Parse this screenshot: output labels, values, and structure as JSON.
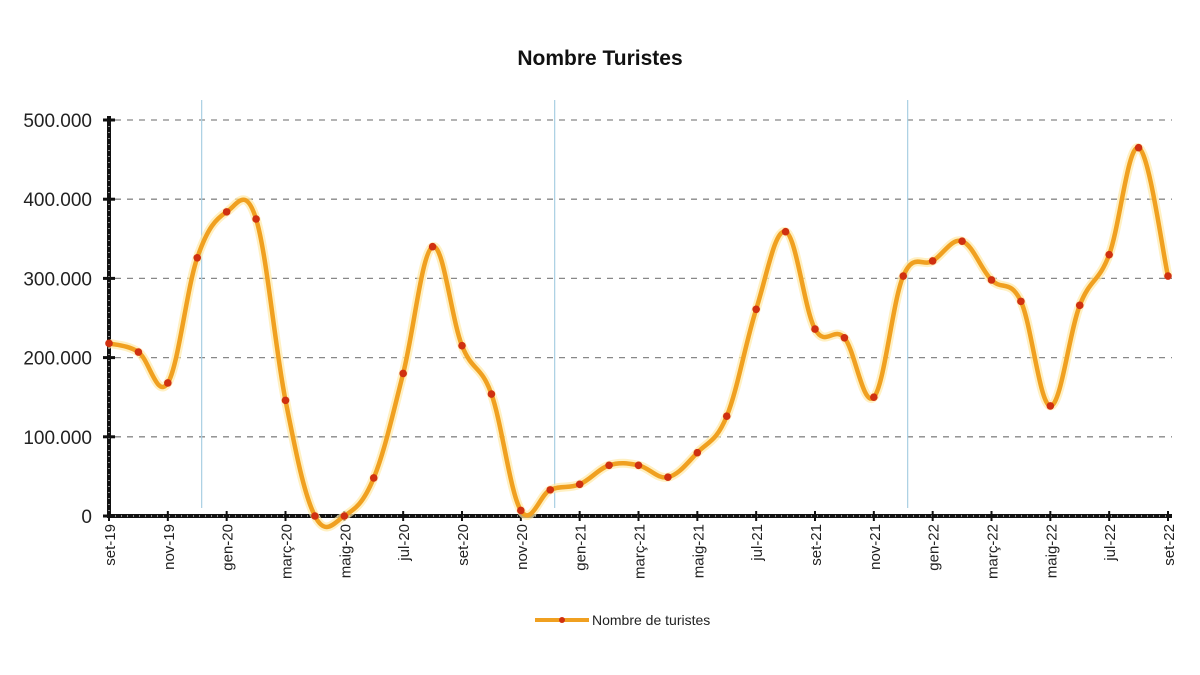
{
  "chart_data": {
    "type": "line",
    "title": "Nombre Turistes",
    "xlabel": "",
    "ylabel": "",
    "ylim": [
      0,
      500000
    ],
    "yticks": [
      0,
      100000,
      200000,
      300000,
      400000,
      500000
    ],
    "ytick_labels": [
      "0",
      "100.000",
      "200.000",
      "300.000",
      "400.000",
      "500.000"
    ],
    "grid": "horizontal dashed",
    "legend_position": "bottom-center",
    "x": [
      "set-19",
      "oct-19",
      "nov-19",
      "des-19",
      "gen-20",
      "febr-20",
      "març-20",
      "abr-20",
      "maig-20",
      "juny-20",
      "jul-20",
      "ag-20",
      "set-20",
      "oct-20",
      "nov-20",
      "des-20",
      "gen-21",
      "febr-21",
      "març-21",
      "abr-21",
      "maig-21",
      "juny-21",
      "jul-21",
      "ag-21",
      "set-21",
      "oct-21",
      "nov-21",
      "des-21",
      "gen-22",
      "febr-22",
      "març-22",
      "abr-22",
      "maig-22",
      "juny-22",
      "jul-22",
      "ag-22",
      "set-22"
    ],
    "xtick_labels": [
      "set-19",
      "nov-19",
      "gen-20",
      "març-20",
      "maig-20",
      "jul-20",
      "set-20",
      "nov-20",
      "gen-21",
      "març-21",
      "maig-21",
      "jul-21",
      "set-21",
      "nov-21",
      "gen-22",
      "març-22",
      "maig-22",
      "jul-22",
      "set-22"
    ],
    "series": [
      {
        "name": "Nombre de turistes",
        "color": "#f0a020",
        "marker_color": "#d03010",
        "values": [
          218000,
          207000,
          168000,
          326000,
          384000,
          375000,
          146000,
          0,
          0,
          48000,
          180000,
          340000,
          215000,
          154000,
          7000,
          33000,
          40000,
          64000,
          64000,
          49000,
          80000,
          126000,
          261000,
          359000,
          236000,
          225000,
          150000,
          303000,
          322000,
          347000,
          298000,
          271000,
          139000,
          266000,
          330000,
          465000,
          303000
        ]
      }
    ],
    "year_dividers_after_index": [
      3,
      15,
      27
    ]
  },
  "legend": {
    "label": "Nombre de turistes"
  }
}
